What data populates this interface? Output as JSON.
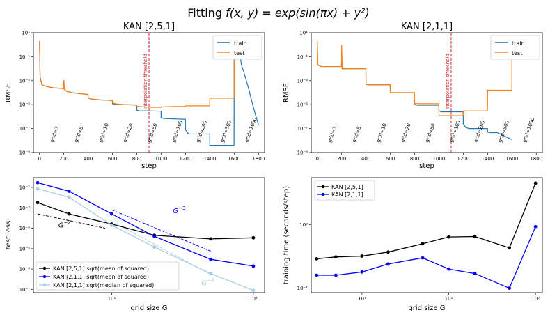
{
  "figure": {
    "title_prefix": "Fitting ",
    "title_formula": "f(x, y) = exp(sin(πx) + y²)"
  },
  "chart_data": [
    {
      "type": "line",
      "title": "KAN [2,5,1]",
      "xlabel": "step",
      "ylabel": "RMSE",
      "xlim": [
        -50,
        1850
      ],
      "ylim": [
        1e-09,
        10
      ],
      "yscale": "log",
      "xticks": [
        0,
        200,
        400,
        600,
        800,
        1000,
        1200,
        1400,
        1600,
        1800
      ],
      "yticks": [
        {
          "v": 1e-09,
          "label": "10⁻⁹"
        },
        {
          "v": 1e-07,
          "label": "10⁻⁷"
        },
        {
          "v": 1e-05,
          "label": "10⁻⁵"
        },
        {
          "v": 0.001,
          "label": "10⁻³"
        },
        {
          "v": 0.1,
          "label": "10⁻¹"
        },
        {
          "v": 10,
          "label": "10¹"
        }
      ],
      "legend": "top-right",
      "threshold": {
        "x": 900,
        "label": "interpolation threshold",
        "color": "#d62728"
      },
      "grid_annotations": [
        {
          "x": 100,
          "label": "grid=3"
        },
        {
          "x": 300,
          "label": "grid=5"
        },
        {
          "x": 500,
          "label": "grid=10"
        },
        {
          "x": 700,
          "label": "grid=20"
        },
        {
          "x": 900,
          "label": "grid=50"
        },
        {
          "x": 1100,
          "label": "grid=100"
        },
        {
          "x": 1300,
          "label": "grid=200"
        },
        {
          "x": 1500,
          "label": "grid=500"
        },
        {
          "x": 1700,
          "label": "grid=1000"
        }
      ],
      "series": [
        {
          "name": "train",
          "color": "#1f77b4",
          "x": [
            0,
            5,
            20,
            60,
            120,
            199,
            200,
            205,
            230,
            300,
            399,
            400,
            420,
            500,
            599,
            600,
            620,
            700,
            799,
            800,
            820,
            900,
            999,
            1000,
            1020,
            1100,
            1199,
            1200,
            1220,
            1230,
            1300,
            1399,
            1400,
            1500,
            1599,
            1600,
            1605,
            1610,
            1620,
            1640,
            1660,
            1680,
            1700,
            1720,
            1740,
            1760,
            1780,
            1800
          ],
          "y": [
            2.0,
            0.002,
            0.00045,
            0.00032,
            0.00025,
            0.00022,
            0.0011,
            0.00018,
            0.00012,
            9e-05,
            7e-05,
            3.5e-05,
            3e-05,
            2.5e-05,
            2.2e-05,
            1.2e-05,
            1.05e-05,
            1e-05,
            9.5e-06,
            3.5e-06,
            3e-06,
            3e-06,
            2.8e-06,
            8e-07,
            7e-07,
            6.5e-07,
            6e-07,
            8e-08,
            4e-08,
            3.5e-08,
            3.5e-08,
            3.5e-08,
            4e-09,
            4e-09,
            4e-09,
            0.5,
            1.0,
            0.3,
            0.08,
            0.5,
            0.02,
            0.005,
            0.001,
            0.0002,
            3e-05,
            5e-06,
            1e-06,
            2e-07
          ]
        },
        {
          "name": "test",
          "color": "#ff7f0e",
          "x": [
            0,
            5,
            20,
            60,
            120,
            199,
            200,
            205,
            230,
            300,
            399,
            400,
            420,
            500,
            599,
            600,
            620,
            700,
            799,
            800,
            820,
            900,
            999,
            1000,
            1100,
            1199,
            1200,
            1300,
            1399,
            1400,
            1500,
            1599,
            1600,
            1800
          ],
          "y": [
            2.0,
            0.002,
            0.00045,
            0.00032,
            0.00025,
            0.00022,
            0.0011,
            0.00018,
            0.00012,
            9e-05,
            7e-05,
            3.5e-05,
            3e-05,
            2.5e-05,
            2.2e-05,
            1.5e-05,
            1.2e-05,
            1e-05,
            9e-06,
            7.5e-06,
            7e-06,
            6e-06,
            6e-06,
            6.5e-06,
            7e-06,
            7e-06,
            8e-06,
            8e-06,
            8e-06,
            3.5e-05,
            3.5e-05,
            3.5e-05,
            1.5,
            1.5
          ]
        }
      ]
    },
    {
      "type": "line",
      "title": "KAN [2,1,1]",
      "xlabel": "step",
      "ylabel": "RMSE",
      "xlim": [
        -50,
        1850
      ],
      "ylim": [
        1e-09,
        10
      ],
      "yscale": "log",
      "xticks": [
        0,
        200,
        400,
        600,
        800,
        1000,
        1200,
        1400,
        1600,
        1800
      ],
      "yticks": [
        {
          "v": 1e-09,
          "label": "10⁻⁹"
        },
        {
          "v": 1e-07,
          "label": "10⁻⁷"
        },
        {
          "v": 1e-05,
          "label": "10⁻⁵"
        },
        {
          "v": 0.001,
          "label": "10⁻³"
        },
        {
          "v": 0.1,
          "label": "10⁻¹"
        },
        {
          "v": 10,
          "label": "10¹"
        }
      ],
      "legend": "top-right",
      "threshold": {
        "x": 1100,
        "label": "interpolation threshold",
        "color": "#d62728"
      },
      "grid_annotations": [
        {
          "x": 100,
          "label": "grid=3"
        },
        {
          "x": 300,
          "label": "grid=5"
        },
        {
          "x": 500,
          "label": "grid=10"
        },
        {
          "x": 700,
          "label": "grid=20"
        },
        {
          "x": 900,
          "label": "grid=50"
        },
        {
          "x": 1100,
          "label": "grid=100"
        },
        {
          "x": 1300,
          "label": "grid=200"
        },
        {
          "x": 1500,
          "label": "grid=500"
        },
        {
          "x": 1700,
          "label": "grid=1000"
        }
      ],
      "series": [
        {
          "name": "train",
          "color": "#1f77b4",
          "x": [
            0,
            5,
            30,
            60,
            199,
            200,
            205,
            230,
            399,
            400,
            420,
            599,
            600,
            620,
            799,
            800,
            820,
            999,
            1000,
            1020,
            1199,
            1200,
            1220,
            1250,
            1399,
            1400,
            1420,
            1480,
            1599,
            1600
          ],
          "y": [
            0.05,
            0.02,
            0.015,
            0.015,
            0.015,
            0.05,
            0.01,
            0.01,
            0.01,
            0.0005,
            0.00045,
            0.00045,
            0.0001,
            0.0001,
            0.0001,
            1e-05,
            9e-06,
            9e-06,
            3e-06,
            2.5e-06,
            2.5e-06,
            2.5e-07,
            1.2e-07,
            1e-07,
            1e-07,
            5e-08,
            4.5e-08,
            4.5e-08,
            1.2e-08,
            1.2e-08
          ]
        },
        {
          "name": "test",
          "color": "#ff7f0e",
          "x": [
            0,
            5,
            30,
            60,
            199,
            200,
            205,
            230,
            399,
            400,
            420,
            599,
            600,
            620,
            799,
            800,
            820,
            999,
            1000,
            1020,
            1199,
            1200,
            1220,
            1399,
            1400,
            1420,
            1599,
            1600,
            1610
          ],
          "y": [
            2.0,
            0.02,
            0.015,
            0.015,
            0.015,
            1.0,
            0.01,
            0.01,
            0.01,
            0.0005,
            0.00045,
            0.00045,
            0.0001,
            0.0001,
            0.0001,
            1.2e-05,
            1.2e-05,
            1.2e-05,
            1.2e-06,
            1.2e-06,
            1.2e-06,
            3e-06,
            3e-06,
            3e-06,
            0.00016,
            0.00016,
            0.00016,
            2.0,
            2.0
          ]
        }
      ]
    },
    {
      "type": "line",
      "xlabel": "grid size G",
      "ylabel": "test loss",
      "xscale": "log",
      "yscale": "log",
      "xlim": [
        2.8,
        120
      ],
      "ylim": [
        7e-08,
        0.03
      ],
      "xticks": [
        {
          "v": 10,
          "label": "10¹"
        },
        {
          "v": 100,
          "label": "10²"
        }
      ],
      "yticks": [
        {
          "v": 1e-07,
          "label": "10⁻⁷"
        },
        {
          "v": 1e-06,
          "label": "10⁻⁶"
        },
        {
          "v": 1e-05,
          "label": "10⁻⁵"
        },
        {
          "v": 0.0001,
          "label": "10⁻⁴"
        },
        {
          "v": 0.001,
          "label": "10⁻³"
        },
        {
          "v": 0.01,
          "label": "10⁻²"
        }
      ],
      "legend": "lower-left",
      "series": [
        {
          "name": "KAN [2,5,1] sqrt(mean of squared)",
          "color": "#000000",
          "x": [
            3,
            5,
            10,
            20,
            50,
            100
          ],
          "y": [
            0.0018,
            0.0005,
            0.00016,
            4.5e-05,
            3e-05,
            3.4e-05
          ]
        },
        {
          "name": "KAN [2,1,1] sqrt(mean of squared)",
          "color": "#0000ff",
          "x": [
            3,
            5,
            10,
            20,
            50,
            100
          ],
          "y": [
            0.017,
            0.0065,
            0.0005,
            4e-05,
            3e-06,
            1.4e-06
          ]
        },
        {
          "name": "KAN [2,1,1] sqrt(median of squared)",
          "color": "#a6cee3",
          "x": [
            3,
            5,
            10,
            20,
            50,
            100
          ],
          "y": [
            0.0085,
            0.0033,
            0.00014,
            1.2e-05,
            6e-07,
            9e-08
          ]
        }
      ],
      "reference_lines": [
        {
          "label_base": "G",
          "label_exp": "−2",
          "color": "#000000",
          "dash": "dashed",
          "x": [
            3,
            9
          ],
          "y": [
            0.0005,
            0.0001
          ]
        },
        {
          "label_base": "G",
          "label_exp": "−3",
          "color": "#0000ff",
          "dash": "dashed",
          "x": [
            10,
            50
          ],
          "y": [
            0.0008,
            7.5e-06
          ]
        },
        {
          "label_base": "G",
          "label_exp": "−4",
          "color": "#a6cee3",
          "dash": "dashed",
          "x": [
            10,
            50
          ],
          "y": [
            0.00022,
            5.5e-07
          ]
        }
      ]
    },
    {
      "type": "line",
      "xlabel": "grid size G",
      "ylabel": "training time (seconds/step)",
      "xscale": "log",
      "yscale": "log",
      "xlim": [
        2.6,
        1200
      ],
      "ylim": [
        0.085,
        5.5
      ],
      "xticks": [
        {
          "v": 10,
          "label": "10¹"
        },
        {
          "v": 100,
          "label": "10²"
        },
        {
          "v": 1000,
          "label": "10³"
        }
      ],
      "yticks": [
        {
          "v": 0.1,
          "label": "10⁻¹"
        },
        {
          "v": 1,
          "label": "10⁰"
        }
      ],
      "legend": "top-left",
      "series": [
        {
          "name": "KAN [2,5,1]",
          "color": "#000000",
          "x": [
            3,
            5,
            10,
            20,
            50,
            100,
            200,
            500,
            1000
          ],
          "y": [
            0.29,
            0.31,
            0.32,
            0.37,
            0.5,
            0.64,
            0.65,
            0.43,
            4.5
          ]
        },
        {
          "name": "KAN [2,1,1]",
          "color": "#0000ff",
          "x": [
            3,
            5,
            10,
            20,
            50,
            100,
            200,
            500,
            1000
          ],
          "y": [
            0.16,
            0.16,
            0.18,
            0.24,
            0.3,
            0.2,
            0.17,
            0.1,
            0.93
          ]
        }
      ]
    }
  ]
}
